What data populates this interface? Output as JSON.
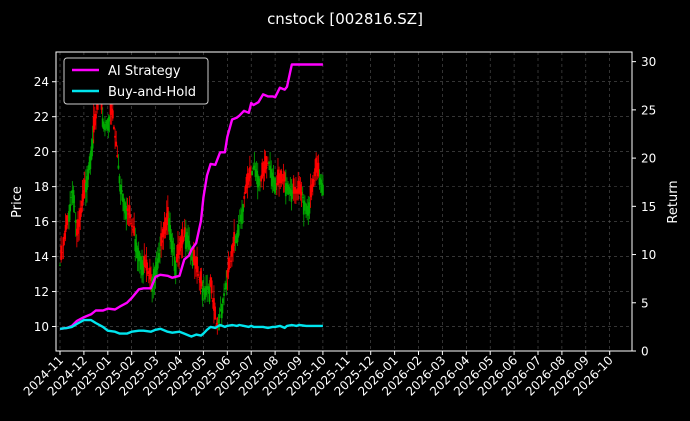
{
  "chart_data": {
    "type": "line",
    "title": "cnstock [002816.SZ]",
    "ylabel_left": "Price",
    "ylabel_right": "Return",
    "left_ylim": [
      8.6,
      25.7
    ],
    "right_ylim": [
      0,
      31
    ],
    "left_yticks": [
      "10",
      "12",
      "14",
      "16",
      "18",
      "20",
      "22",
      "24"
    ],
    "right_yticks": [
      "0",
      "5",
      "10",
      "15",
      "20",
      "25",
      "30"
    ],
    "x_ticks": [
      "2024-11",
      "2024-12",
      "2025-01",
      "2025-02",
      "2025-03",
      "2025-04",
      "2025-05",
      "2025-06",
      "2025-07",
      "2025-08",
      "2025-09",
      "2025-10",
      "2025-11",
      "2025-12",
      "2026-01",
      "2026-02",
      "2026-03",
      "2026-04",
      "2026-05",
      "2026-06",
      "2026-07",
      "2026-08",
      "2026-09",
      "2026-10"
    ],
    "grid": true,
    "legend_position": "top-left",
    "colors": {
      "background": "#000000",
      "up": "#00aa00",
      "down": "#ff0000",
      "ai": "#ff00ff",
      "bh": "#00e5ee",
      "grid": "#555555"
    },
    "series": [
      {
        "name": "AI Strategy",
        "axis": "right",
        "x": [
          0,
          0.3,
          0.5,
          0.7,
          1.0,
          1.3,
          1.5,
          1.8,
          2.0,
          2.3,
          2.5,
          2.8,
          3.0,
          3.3,
          3.5,
          3.8,
          4.0,
          4.2,
          4.5,
          4.7,
          5.0,
          5.2,
          5.4,
          5.5,
          5.7,
          5.9,
          6.0,
          6.15,
          6.3,
          6.5,
          6.7,
          6.9,
          7.0,
          7.2,
          7.4,
          7.5,
          7.7,
          7.9,
          8.0,
          8.1,
          8.3,
          8.5,
          8.7,
          8.9,
          9.0,
          9.2,
          9.4,
          9.5,
          9.7,
          9.9,
          10.0,
          10.3,
          10.5,
          10.8,
          11.0
        ],
        "y": [
          2.3,
          2.4,
          2.6,
          3.1,
          3.5,
          3.8,
          4.2,
          4.2,
          4.4,
          4.3,
          4.6,
          5.0,
          5.5,
          6.4,
          6.5,
          6.5,
          7.7,
          7.9,
          7.8,
          7.6,
          7.8,
          9.5,
          9.9,
          10.5,
          11.2,
          13.5,
          15.9,
          18.2,
          19.4,
          19.3,
          20.6,
          20.6,
          22.2,
          24.0,
          24.2,
          24.4,
          24.9,
          24.7,
          25.7,
          25.5,
          25.8,
          26.6,
          26.4,
          26.4,
          26.3,
          27.3,
          27.1,
          27.4,
          29.7,
          29.7,
          29.7,
          29.7,
          29.7,
          29.7,
          29.7
        ]
      },
      {
        "name": "Buy-and-Hold",
        "axis": "right",
        "x": [
          0,
          0.3,
          0.5,
          0.7,
          1.0,
          1.3,
          1.5,
          1.8,
          2.0,
          2.3,
          2.5,
          2.8,
          3.0,
          3.3,
          3.5,
          3.8,
          4.0,
          4.2,
          4.5,
          4.7,
          5.0,
          5.2,
          5.4,
          5.5,
          5.7,
          5.9,
          6.0,
          6.15,
          6.3,
          6.5,
          6.7,
          6.9,
          7.0,
          7.2,
          7.4,
          7.5,
          7.7,
          7.9,
          8.0,
          8.1,
          8.3,
          8.5,
          8.7,
          8.9,
          9.0,
          9.2,
          9.4,
          9.5,
          9.7,
          9.9,
          10.0,
          10.3,
          10.5,
          10.8,
          11.0
        ],
        "y": [
          2.3,
          2.4,
          2.5,
          2.8,
          3.2,
          3.2,
          2.9,
          2.5,
          2.1,
          2.0,
          1.8,
          1.8,
          2.0,
          2.1,
          2.1,
          2.0,
          2.2,
          2.3,
          2.0,
          1.9,
          2.0,
          1.8,
          1.6,
          1.5,
          1.7,
          1.6,
          1.8,
          2.2,
          2.5,
          2.4,
          2.7,
          2.5,
          2.6,
          2.7,
          2.6,
          2.7,
          2.6,
          2.5,
          2.6,
          2.5,
          2.5,
          2.5,
          2.4,
          2.5,
          2.5,
          2.6,
          2.4,
          2.6,
          2.7,
          2.6,
          2.7,
          2.6,
          2.6,
          2.6,
          2.6
        ]
      }
    ],
    "candlestick_closes": [
      13.5,
      13.8,
      14.2,
      14.6,
      15.0,
      15.4,
      15.8,
      16.2,
      16.6,
      17.0,
      17.4,
      17.8,
      17.8,
      16.9,
      16.1,
      15.2,
      15.3,
      15.7,
      16.1,
      16.5,
      16.9,
      17.3,
      17.8,
      18.2,
      18.6,
      19.0,
      19.4,
      19.9,
      20.3,
      20.7,
      21.1,
      21.5,
      21.9,
      22.4,
      22.8,
      23.2,
      23.0,
      22.4,
      21.9,
      21.5,
      21.6,
      21.7,
      21.8,
      21.9,
      22.0,
      22.1,
      22.2,
      21.9,
      21.3,
      20.8,
      20.3,
      19.7,
      19.2,
      18.6,
      18.1,
      17.8,
      17.6,
      17.3,
      17.1,
      16.9,
      16.6,
      16.4,
      16.2,
      15.9,
      15.7,
      15.5,
      15.2,
      15.0,
      14.8,
      14.5,
      14.3,
      14.2,
      14.0,
      13.8,
      13.7,
      13.5,
      13.4,
      13.2,
      13.0,
      12.9,
      12.7,
      12.6,
      12.8,
      13.0,
      13.3,
      13.5,
      13.7,
      13.9,
      14.2,
      14.4,
      14.6,
      14.8,
      15.1,
      15.3,
      15.5,
      15.8,
      16.0,
      16.2,
      15.8,
      15.3,
      14.9,
      14.5,
      14.0,
      13.6,
      13.7,
      13.9,
      14.1,
      14.3,
      14.5,
      14.7,
      14.9,
      15.1,
      15.3,
      15.4,
      15.2,
      14.9,
      14.6,
      14.3,
      14.0,
      13.7,
      13.5,
      13.3,
      13.1,
      12.9,
      12.7,
      12.5,
      12.3,
      12.2,
      12.2,
      12.2,
      12.3,
      12.3,
      12.3,
      12.3,
      12.3,
      11.9,
      11.4,
      10.9,
      10.4,
      9.9,
      10.1,
      10.4,
      10.7,
      11.0,
      11.3,
      11.6,
      11.9,
      12.2,
      12.5,
      12.8,
      13.1,
      13.4,
      13.7,
      14.0,
      14.3,
      14.6,
      14.9,
      15.2,
      15.5,
      15.8,
      16.1,
      16.4,
      16.7,
      17.0,
      17.3,
      17.6,
      17.9,
      18.1,
      18.3,
      18.5,
      18.7,
      18.9,
      19.1,
      19.2,
      19.0,
      18.9,
      18.7,
      18.6,
      18.4,
      18.3,
      18.5,
      18.6,
      18.8,
      19.0,
      19.1,
      19.3,
      19.4,
      19.2,
      19.0,
      18.8,
      18.6,
      18.4,
      18.2,
      18.1,
      18.1,
      18.2,
      18.2,
      18.2,
      18.3,
      18.3,
      18.3,
      18.2,
      18.2,
      18.1,
      18.0,
      17.9,
      17.8,
      17.7,
      17.6,
      17.6,
      17.6,
      17.6,
      17.6,
      17.6,
      17.6,
      17.5,
      17.4,
      17.2,
      17.1,
      17.0,
      16.9,
      16.8,
      17.1,
      17.4,
      17.7,
      18.0,
      18.3,
      18.6,
      18.9,
      18.8,
      18.6,
      18.5,
      18.4,
      18.2,
      18.1
    ]
  },
  "legend": [
    {
      "label": "AI Strategy",
      "color": "#ff00ff"
    },
    {
      "label": "Buy-and-Hold",
      "color": "#00e5ee"
    }
  ]
}
